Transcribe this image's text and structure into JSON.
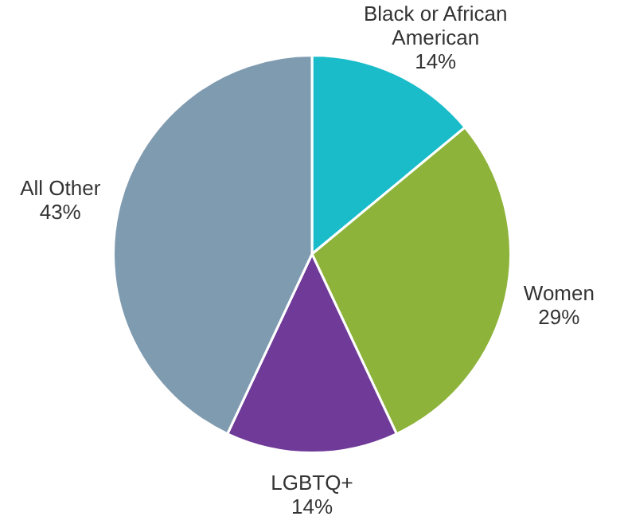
{
  "chart_data": {
    "type": "pie",
    "categories": [
      "Black or African American",
      "Women",
      "LGBTQ+",
      "All Other"
    ],
    "values": [
      14,
      29,
      14,
      43
    ],
    "colors": [
      "#1bbcca",
      "#8db33a",
      "#6f3a98",
      "#7f9bb0"
    ],
    "value_labels": [
      "14%",
      "29%",
      "14%",
      "43%"
    ],
    "legend": false
  }
}
